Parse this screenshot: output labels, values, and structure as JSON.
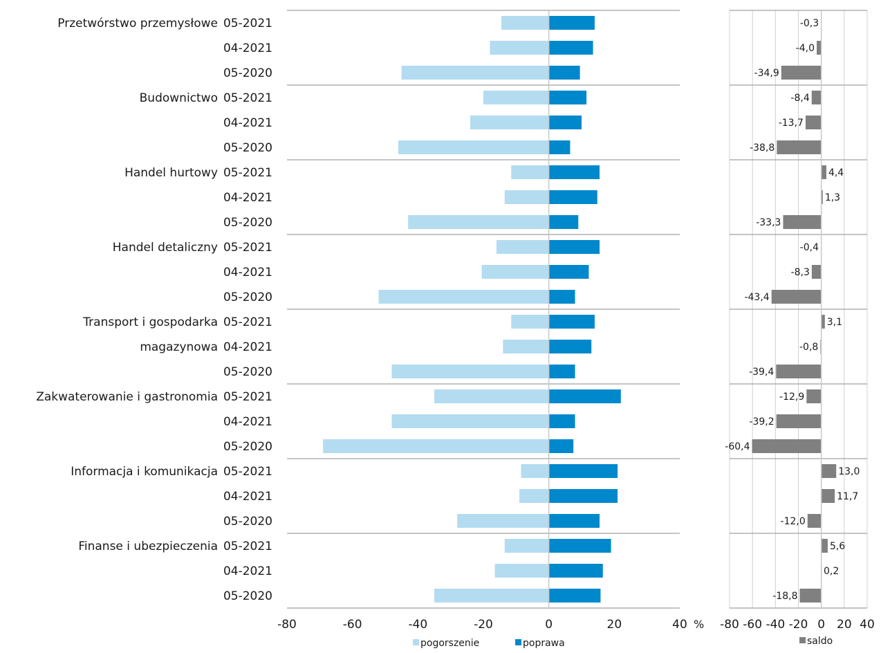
{
  "legend": {
    "pogorszenie": "pogorszenie",
    "poprawa": "poprawa",
    "saldo": "saldo"
  },
  "axis_unit": "%",
  "colors": {
    "pogorszenie": "#b3dcf0",
    "poprawa": "#0088cc",
    "saldo": "#808080",
    "grid": "#d0d0d0",
    "separator": "#a0a0a0",
    "zero": "#c8c8c8"
  },
  "chart_data": [
    {
      "type": "bar",
      "orientation": "horizontal",
      "xlim": [
        -80,
        40
      ],
      "xticks": [
        -80,
        -60,
        -40,
        -20,
        0,
        20,
        40
      ],
      "xtick_labels": [
        "-80",
        "-60",
        "-40",
        "-20",
        "0",
        "20",
        "40"
      ],
      "grid": true,
      "legend_position": "bottom",
      "groups": [
        {
          "name": "Przetwórstwo przemysłowe",
          "name_lines": [
            "Przetwórstwo przemysłowe"
          ]
        },
        {
          "name": "Budownictwo",
          "name_lines": [
            "Budownictwo"
          ]
        },
        {
          "name": "Handel hurtowy",
          "name_lines": [
            "Handel hurtowy"
          ]
        },
        {
          "name": "Handel detaliczny",
          "name_lines": [
            "Handel detaliczny"
          ]
        },
        {
          "name": "Transport i gospodarka magazynowa",
          "name_lines": [
            "Transport i gospodarka",
            "magazynowa"
          ]
        },
        {
          "name": "Zakwaterowanie i gastronomia",
          "name_lines": [
            "Zakwaterowanie i gastronomia"
          ]
        },
        {
          "name": "Informacja i komunikacja",
          "name_lines": [
            "Informacja i komunikacja"
          ]
        },
        {
          "name": "Finanse i ubezpieczenia",
          "name_lines": [
            "Finanse i ubezpieczenia"
          ]
        }
      ],
      "periods": [
        "05-2021",
        "04-2021",
        "05-2020"
      ],
      "series": [
        {
          "name": "pogorszenie",
          "values": [
            -14.5,
            -18.0,
            -45.0,
            -20.0,
            -24.0,
            -46.0,
            -11.5,
            -13.5,
            -43.0,
            -16.0,
            -20.5,
            -52.0,
            -11.5,
            -14.0,
            -48.0,
            -35.0,
            -48.0,
            -69.0,
            -8.5,
            -9.0,
            -28.0,
            -13.5,
            -16.5,
            -35.0
          ]
        },
        {
          "name": "poprawa",
          "values": [
            14.0,
            13.5,
            9.5,
            11.5,
            10.0,
            6.5,
            15.5,
            14.8,
            9.0,
            15.5,
            12.2,
            8.0,
            14.0,
            13.0,
            8.0,
            22.0,
            8.0,
            7.5,
            21.0,
            21.0,
            15.5,
            19.0,
            16.5,
            15.8
          ]
        }
      ]
    },
    {
      "type": "bar",
      "orientation": "horizontal",
      "xlim": [
        -80,
        40
      ],
      "xticks": [
        -80,
        -60,
        -40,
        -20,
        0,
        20,
        40
      ],
      "xtick_labels": [
        "-80",
        "-60",
        "-40",
        "-20",
        "0",
        "20",
        "40"
      ],
      "grid": true,
      "legend_position": "bottom",
      "series": [
        {
          "name": "saldo",
          "values": [
            -0.3,
            -4.0,
            -34.9,
            -8.4,
            -13.7,
            -38.8,
            4.4,
            1.3,
            -33.3,
            -0.4,
            -8.3,
            -43.4,
            3.1,
            -0.8,
            -39.4,
            -12.9,
            -39.2,
            -60.4,
            13.0,
            11.7,
            -12.0,
            5.6,
            0.2,
            -18.8
          ],
          "labels": [
            "-0,3",
            "-4,0",
            "-34,9",
            "-8,4",
            "-13,7",
            "-38,8",
            "4,4",
            "1,3",
            "-33,3",
            "-0,4",
            "-8,3",
            "-43,4",
            "3,1",
            "-0,8",
            "-39,4",
            "-12,9",
            "-39,2",
            "-60,4",
            "13,0",
            "11,7",
            "-12,0",
            "5,6",
            "0,2",
            "-18,8"
          ]
        }
      ]
    }
  ]
}
